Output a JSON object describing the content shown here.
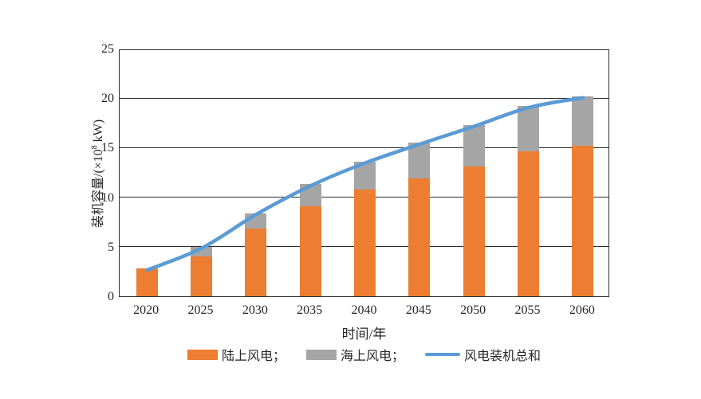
{
  "figure": {
    "background": "#ffffff",
    "plot_border_color": "#2b2b2b",
    "gridline_color": "#2b2b2b"
  },
  "axes": {
    "y_label_prefix": "装机容量/(×10",
    "y_label_sup": "8",
    "y_label_suffix": " kW)",
    "x_label": "时间/年",
    "y_ticks": [
      0,
      5,
      10,
      15,
      20,
      25
    ]
  },
  "legend": [
    {
      "label": "陆上风电；",
      "swatch": "rect",
      "color": "#ED7D31"
    },
    {
      "label": "海上风电；",
      "swatch": "rect",
      "color": "#A5A5A5"
    },
    {
      "label": "风电装机总和",
      "swatch": "line",
      "color": "#5B9BD5"
    }
  ],
  "chart_data": {
    "type": "bar",
    "subtype": "stacked-bar-with-line-overlay",
    "categories": [
      "2020",
      "2025",
      "2030",
      "2035",
      "2040",
      "2045",
      "2050",
      "2055",
      "2060"
    ],
    "series": [
      {
        "name": "陆上风电",
        "render": "bar-stacked",
        "color": "#ED7D31",
        "values": [
          2.8,
          4.0,
          6.8,
          9.1,
          10.8,
          11.9,
          13.1,
          14.6,
          15.2
        ]
      },
      {
        "name": "海上风电",
        "render": "bar-stacked",
        "color": "#A5A5A5",
        "values": [
          0,
          1.0,
          1.6,
          2.2,
          2.8,
          3.6,
          4.2,
          4.6,
          5.0
        ]
      },
      {
        "name": "风电装机总和",
        "render": "line-smooth",
        "color": "#5B9BD5",
        "values": [
          2.8,
          5.0,
          8.4,
          11.3,
          13.6,
          15.5,
          17.3,
          19.2,
          20.2
        ]
      }
    ],
    "title": "",
    "xlabel": "时间/年",
    "ylabel": "装机容量/(×10⁸ kW)",
    "ylim": [
      0,
      25
    ],
    "y_tick_step": 5,
    "grid": "horizontal",
    "legend_position": "bottom"
  }
}
